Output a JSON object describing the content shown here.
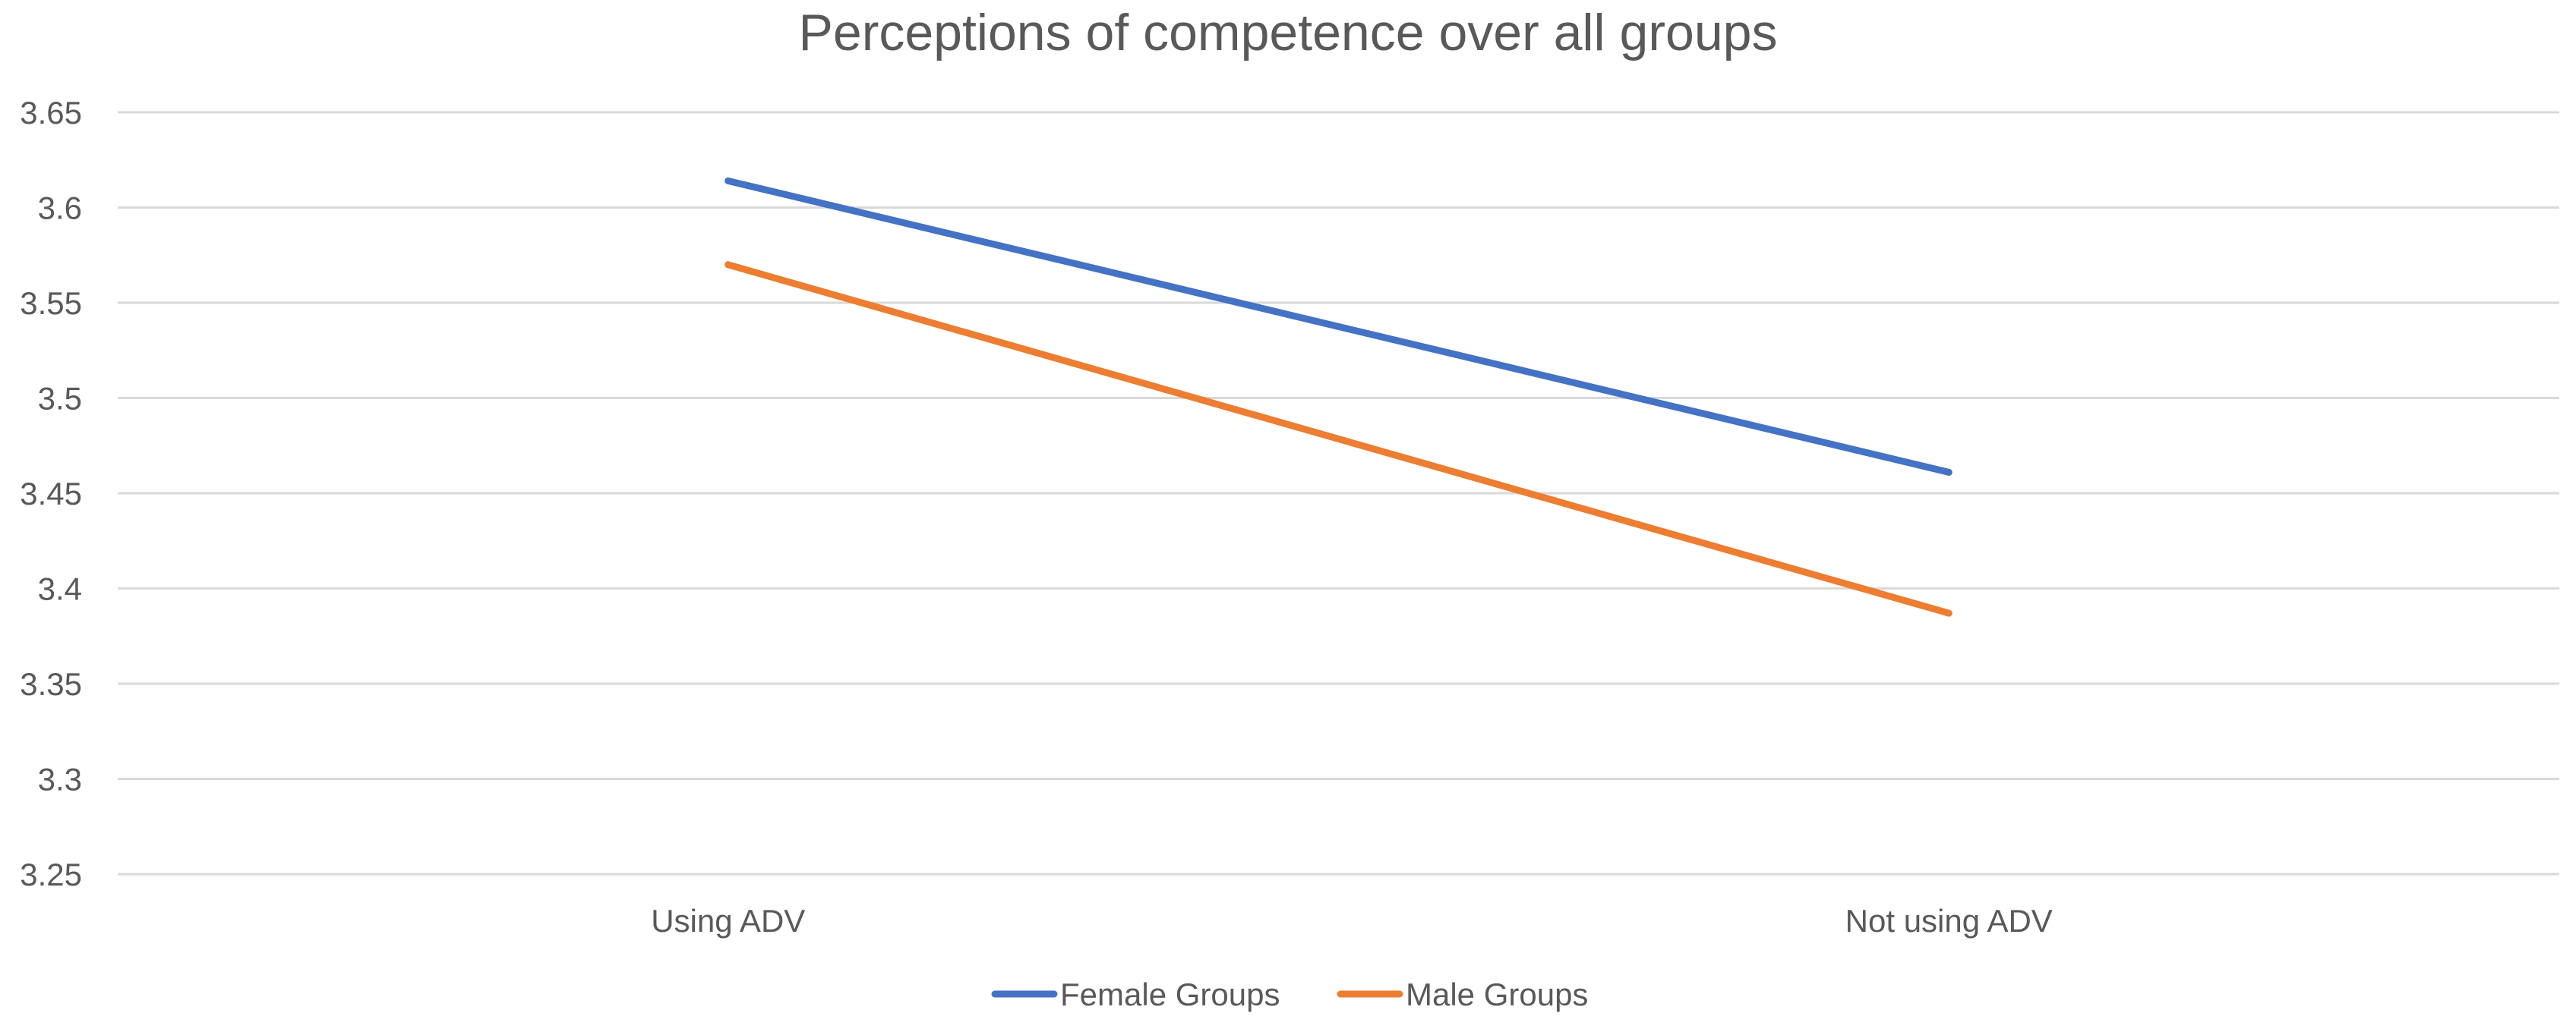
{
  "chart_data": {
    "type": "line",
    "title": "Perceptions of competence over all groups",
    "xlabel": "",
    "ylabel": "",
    "categories": [
      "Using ADV",
      "Not using ADV"
    ],
    "series": [
      {
        "name": "Female Groups",
        "color": "#4472C4",
        "values": [
          3.614,
          3.461
        ]
      },
      {
        "name": "Male Groups",
        "color": "#ED7D31",
        "values": [
          3.57,
          3.387
        ]
      }
    ],
    "ylim": [
      3.25,
      3.65
    ],
    "yticks": [
      "3.25",
      "3.3",
      "3.35",
      "3.4",
      "3.45",
      "3.5",
      "3.55",
      "3.6",
      "3.65"
    ],
    "grid": true,
    "legend": "bottom-center"
  }
}
